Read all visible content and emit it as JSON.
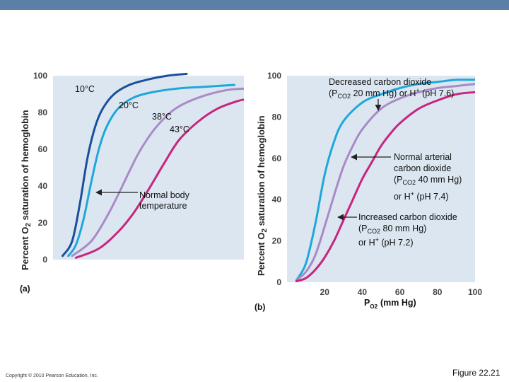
{
  "chart_data": [
    {
      "type": "line",
      "panel": "(a)",
      "ylabel": "Percent O2 saturation of hemoglobin",
      "ylim": [
        0,
        100
      ],
      "yticks": [
        "0",
        "20",
        "40",
        "60",
        "80",
        "100"
      ],
      "grid": false,
      "series": [
        {
          "name": "10°C",
          "color": "#1a4f9c",
          "x": [
            5,
            10,
            14,
            18,
            22,
            26,
            32,
            40,
            50,
            60,
            70
          ],
          "values": [
            2,
            10,
            30,
            55,
            72,
            82,
            90,
            95,
            98,
            100,
            101
          ]
        },
        {
          "name": "20°C",
          "color": "#1ea7dc",
          "x": [
            8,
            12,
            16,
            20,
            24,
            28,
            34,
            42,
            52,
            65,
            80,
            95
          ],
          "values": [
            2,
            8,
            22,
            42,
            60,
            72,
            82,
            88,
            91,
            93,
            94,
            95
          ]
        },
        {
          "name": "38°C",
          "color": "#a98ac7",
          "x": [
            10,
            20,
            28,
            34,
            40,
            46,
            54,
            64,
            76,
            90,
            100
          ],
          "values": [
            2,
            10,
            23,
            35,
            48,
            60,
            72,
            82,
            88,
            92,
            93
          ]
        },
        {
          "name": "43°C",
          "color": "#c7257f",
          "x": [
            12,
            24,
            34,
            42,
            50,
            58,
            66,
            76,
            86,
            96,
            100
          ],
          "values": [
            1,
            6,
            15,
            25,
            38,
            52,
            65,
            75,
            82,
            86,
            87
          ]
        }
      ],
      "annotations": {
        "normal_body_temperature": "Normal body temperature"
      }
    },
    {
      "type": "line",
      "panel": "(b)",
      "ylabel": "Percent O2 saturation of hemoglobin",
      "xlabel_prefix": "P",
      "xlabel_sub": "O2",
      "xlabel_suffix": "(mm Hg)",
      "ylim": [
        0,
        100
      ],
      "xlim": [
        0,
        100
      ],
      "yticks": [
        "0",
        "20",
        "40",
        "60",
        "80",
        "100"
      ],
      "xticks": [
        "20",
        "40",
        "60",
        "80",
        "100"
      ],
      "grid": false,
      "series": [
        {
          "name": "Decreased carbon dioxide (PCO2 20 mm Hg) or H+ (pH 7.6)",
          "color": "#1ea7dc",
          "x": [
            5,
            10,
            15,
            20,
            25,
            30,
            40,
            50,
            60,
            70,
            80,
            90,
            100
          ],
          "values": [
            1,
            9,
            28,
            52,
            68,
            78,
            87,
            91,
            94,
            96,
            97,
            98,
            98
          ]
        },
        {
          "name": "Normal arterial carbon dioxide (PCO2 40 mm Hg) or H+ (pH 7.4)",
          "color": "#a98ac7",
          "x": [
            5,
            10,
            15,
            20,
            25,
            30,
            35,
            40,
            50,
            60,
            70,
            80,
            90,
            100
          ],
          "values": [
            1,
            5,
            13,
            27,
            42,
            56,
            66,
            74,
            84,
            89,
            92,
            94,
            95,
            96
          ]
        },
        {
          "name": "Increased carbon dioxide (PCO2 80 mm Hg) or H+ (pH 7.2)",
          "color": "#c7257f",
          "x": [
            5,
            10,
            15,
            20,
            25,
            30,
            35,
            40,
            45,
            50,
            55,
            60,
            70,
            80,
            90,
            100
          ],
          "values": [
            0.5,
            2,
            6,
            12,
            20,
            30,
            40,
            50,
            58,
            66,
            72,
            77,
            84,
            88,
            91,
            92
          ]
        }
      ],
      "annotations": {
        "decreased_line1": "Decreased carbon dioxide",
        "decreased_line2_a": "(P",
        "decreased_line2_sub": "CO2",
        "decreased_line2_b": " 20 mm Hg) or H",
        "decreased_line2_sup": "+",
        "decreased_line2_c": " (pH 7.6)",
        "normal_line1": "Normal arterial",
        "normal_line2": "carbon dioxide",
        "normal_line3_a": "(P",
        "normal_line3_sub": "CO2",
        "normal_line3_b": " 40 mm Hg)",
        "normal_line4_a": "or H",
        "normal_line4_sup": "+",
        "normal_line4_b": " (pH 7.4)",
        "increased_line1": "Increased carbon dioxide",
        "increased_line2_a": "(P",
        "increased_line2_sub": "CO2",
        "increased_line2_b": " 80 mm Hg)",
        "increased_line3_a": "or H",
        "increased_line3_sup": "+",
        "increased_line3_b": " (pH 7.2)"
      }
    }
  ],
  "labels": {
    "temp_10": "10°C",
    "temp_20": "20°C",
    "temp_38": "38°C",
    "temp_43": "43°C",
    "normal_body_line1": "Normal body",
    "normal_body_line2": "temperature",
    "ylabel_prefix": "Percent O",
    "ylabel_sub": "2",
    "ylabel_suffix": " saturation of hemoglobin",
    "panel_a": "(a)",
    "panel_b": "(b)"
  },
  "footer": {
    "copyright": "Copyright © 2010 Pearson Education, Inc.",
    "figure": "Figure 22.21"
  },
  "colors": {
    "plot_bg": "#dbe6f0",
    "arrow": "#222222"
  }
}
